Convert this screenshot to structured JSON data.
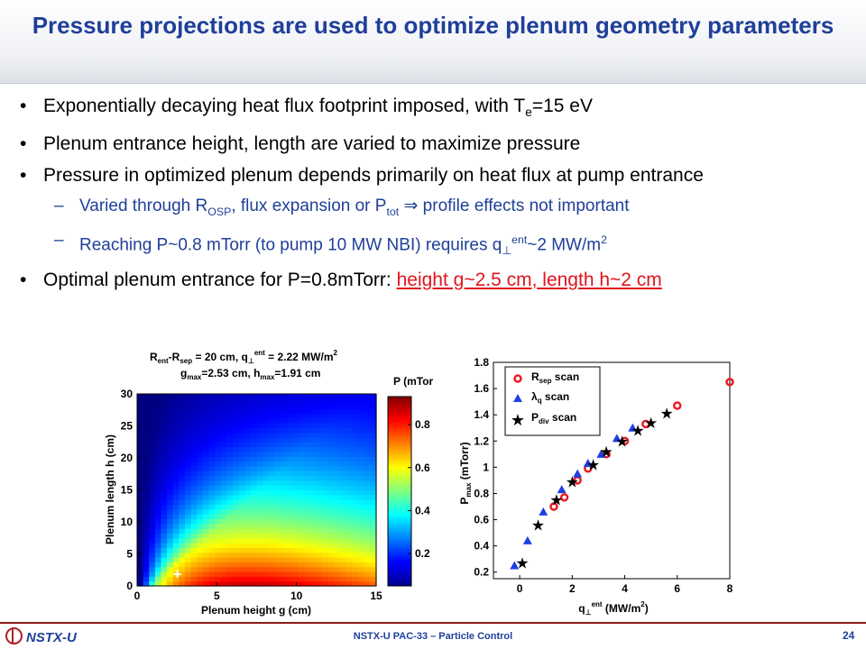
{
  "slide": {
    "title": "Pressure projections are used to optimize plenum geometry parameters",
    "bullets": {
      "b1_pre": "Exponentially decaying heat flux footprint imposed, with T",
      "b1_sub": "e",
      "b1_post": "=15 eV",
      "b2": "Plenum entrance height, length are varied to maximize pressure",
      "b3": "Pressure in optimized plenum depends primarily on heat flux at pump entrance",
      "s1_a": "Varied through R",
      "s1_b": "OSP",
      "s1_c": ", flux expansion or P",
      "s1_d": "tot",
      "s1_e": " ⇒ profile effects not important",
      "s2_a": "Reaching P~0.8 mTorr (to pump 10 MW NBI) requires q",
      "s2_b": "⊥",
      "s2_c": "ent",
      "s2_d": "~2 MW/m",
      "s2_e": "2",
      "b4_pre": "Optimal plenum entrance for P=0.8mTorr: ",
      "b4_red": "height g~2.5 cm, length h~2 cm"
    },
    "footer": {
      "logo": "NSTX-U",
      "center": "NSTX-U PAC-33 – Particle Control",
      "page": "24"
    }
  },
  "chart_data": [
    {
      "type": "heatmap",
      "title_line1": "R",
      "annotation": "R_ent-R_sep = 20 cm, q⊥ent = 2.22 MW/m2; gmax=2.53 cm, hmax=1.91 cm",
      "ann": {
        "l1a": "R",
        "l1b": "ent",
        "l1c": "-R",
        "l1d": "sep",
        "l1e": " = 20 cm, q",
        "l1f": "⊥",
        "l1g": "ent",
        "l1h": " = 2.22 MW/m",
        "l1i": "2",
        "l2a": "g",
        "l2b": "max",
        "l2c": "=2.53 cm, h",
        "l2d": "max",
        "l2e": "=1.91 cm"
      },
      "xlabel": "Plenum height g (cm)",
      "ylabel": "Plenum length h (cm)",
      "xlim": [
        0,
        15
      ],
      "ylim": [
        0,
        30
      ],
      "xticks": [
        "0",
        "5",
        "10",
        "15"
      ],
      "yticks": [
        "0",
        "5",
        "10",
        "15",
        "20",
        "25",
        "30"
      ],
      "colorbar_label": "P (mTorr)",
      "colorbar_ticks": [
        "0.2",
        "0.4",
        "0.6",
        "0.8"
      ],
      "colorbar_range": [
        0.05,
        0.93
      ],
      "marker": "+",
      "optimum": {
        "g": 2.53,
        "h": 1.91
      }
    },
    {
      "type": "scatter",
      "xlabel_a": "q",
      "xlabel_b": "⊥",
      "xlabel_c": "ent",
      "xlabel_d": " (MW/m",
      "xlabel_e": "2",
      "xlabel_f": ")",
      "ylabel_a": "P",
      "ylabel_b": "max",
      "ylabel_c": " (mTorr)",
      "xlim": [
        -1,
        8
      ],
      "ylim": [
        0.15,
        1.8
      ],
      "xticks": [
        "0",
        "2",
        "4",
        "6",
        "8"
      ],
      "yticks": [
        "0.2",
        "0.4",
        "0.6",
        "0.8",
        "1",
        "1.2",
        "1.4",
        "1.6",
        "1.8"
      ],
      "legend": [
        {
          "a": "R",
          "b": "sep",
          "c": " scan"
        },
        {
          "a": "λ",
          "b": "q",
          "c": " scan"
        },
        {
          "a": "P",
          "b": "div",
          "c": " scan"
        }
      ],
      "colors": {
        "rsep": "#e81c24",
        "lambda": "#1f3fe0",
        "pdiv": "#000000"
      },
      "series": [
        {
          "name": "Rsep scan",
          "marker": "circle",
          "x": [
            1.3,
            1.7,
            2.2,
            2.6,
            3.3,
            4.0,
            4.8,
            6.0,
            8.0
          ],
          "y": [
            0.7,
            0.77,
            0.9,
            0.99,
            1.1,
            1.2,
            1.33,
            1.47,
            1.65
          ]
        },
        {
          "name": "lambda_q scan",
          "marker": "triangle",
          "x": [
            -0.2,
            0.3,
            0.9,
            1.6,
            2.2,
            2.6,
            3.1,
            3.7,
            4.3
          ],
          "y": [
            0.25,
            0.44,
            0.66,
            0.83,
            0.95,
            1.03,
            1.1,
            1.22,
            1.3
          ]
        },
        {
          "name": "Pdiv scan",
          "marker": "star",
          "x": [
            0.1,
            0.7,
            1.4,
            2.0,
            2.8,
            3.3,
            3.9,
            4.5,
            5.0,
            5.6
          ],
          "y": [
            0.27,
            0.56,
            0.75,
            0.89,
            1.02,
            1.12,
            1.2,
            1.28,
            1.34,
            1.41
          ]
        }
      ]
    }
  ]
}
